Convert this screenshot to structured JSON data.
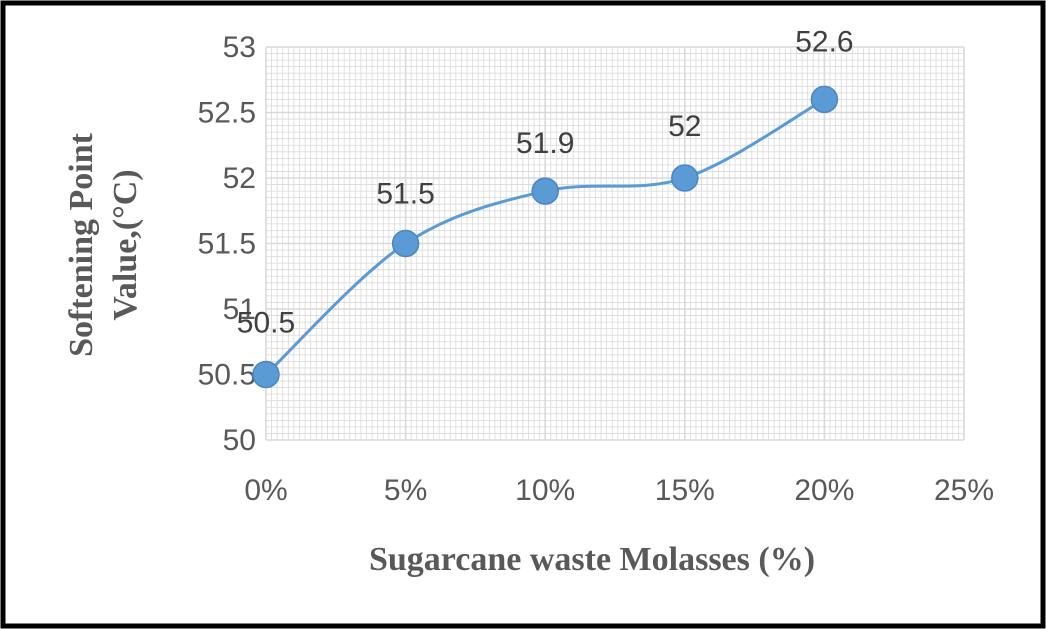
{
  "chart_data": {
    "type": "line",
    "x": [
      0,
      5,
      10,
      15,
      20
    ],
    "values": [
      50.5,
      51.5,
      51.9,
      52,
      52.6
    ],
    "data_labels": [
      "50.5",
      "51.5",
      "51.9",
      "52",
      "52.6"
    ],
    "xticks": [
      "0%",
      "5%",
      "10%",
      "15%",
      "20%",
      "25%"
    ],
    "yticks": [
      "50",
      "50.5",
      "51",
      "51.5",
      "52",
      "52.5",
      "53"
    ],
    "xlim": [
      0,
      25
    ],
    "ylim": [
      50,
      53
    ],
    "xlabel": "Sugarcane waste Molasses (%)",
    "ylabel_line1": "Softening Point",
    "ylabel_line2": "Value,(°C)",
    "grid": true,
    "legend": "none",
    "smooth": true,
    "colors": {
      "line": "#5b9bd5",
      "marker": "#5b9bd5",
      "grid": "#d9d9d9",
      "frame": "#000000"
    }
  }
}
